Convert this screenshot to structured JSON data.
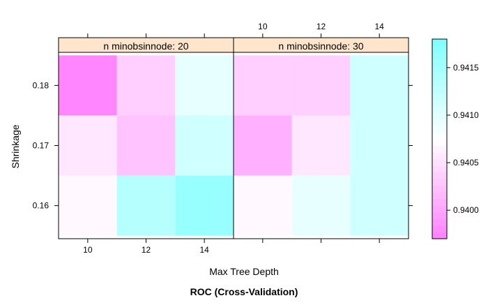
{
  "chart_data": {
    "type": "heatmap",
    "title": "ROC (Cross-Validation)",
    "xlabel": "Max Tree Depth",
    "ylabel": "Shrinkage",
    "x_ticks": [
      10,
      12,
      14
    ],
    "y_ticks": [
      0.16,
      0.17,
      0.18
    ],
    "xlim": [
      9,
      15
    ],
    "ylim": [
      0.1545,
      0.1855
    ],
    "panels": [
      {
        "label": "n minobsinnode: 20",
        "cells": [
          {
            "x": 10,
            "y": 0.18,
            "value": 0.93975
          },
          {
            "x": 12,
            "y": 0.18,
            "value": 0.94035
          },
          {
            "x": 14,
            "y": 0.18,
            "value": 0.94095
          },
          {
            "x": 10,
            "y": 0.17,
            "value": 0.94055
          },
          {
            "x": 12,
            "y": 0.17,
            "value": 0.94025
          },
          {
            "x": 14,
            "y": 0.17,
            "value": 0.94115
          },
          {
            "x": 10,
            "y": 0.16,
            "value": 0.9407
          },
          {
            "x": 12,
            "y": 0.16,
            "value": 0.94135
          },
          {
            "x": 14,
            "y": 0.16,
            "value": 0.9416
          }
        ]
      },
      {
        "label": "n minobsinnode: 30",
        "cells": [
          {
            "x": 10,
            "y": 0.18,
            "value": 0.94035
          },
          {
            "x": 12,
            "y": 0.18,
            "value": 0.94035
          },
          {
            "x": 14,
            "y": 0.18,
            "value": 0.94115
          },
          {
            "x": 10,
            "y": 0.17,
            "value": 0.9401
          },
          {
            "x": 12,
            "y": 0.17,
            "value": 0.94055
          },
          {
            "x": 14,
            "y": 0.17,
            "value": 0.94115
          },
          {
            "x": 10,
            "y": 0.16,
            "value": 0.9407
          },
          {
            "x": 12,
            "y": 0.16,
            "value": 0.94095
          },
          {
            "x": 14,
            "y": 0.16,
            "value": 0.94115
          }
        ]
      }
    ],
    "colorbar": {
      "range": [
        0.9397,
        0.9418
      ],
      "ticks": [
        "0.9400",
        "0.9405",
        "0.9410",
        "0.9415"
      ],
      "low_color": "#ff80ff",
      "mid_color": "#ffffff",
      "high_color": "#80ffff"
    },
    "strip_color": "#ffe5cc",
    "grid": false,
    "legend_placement": "right"
  }
}
